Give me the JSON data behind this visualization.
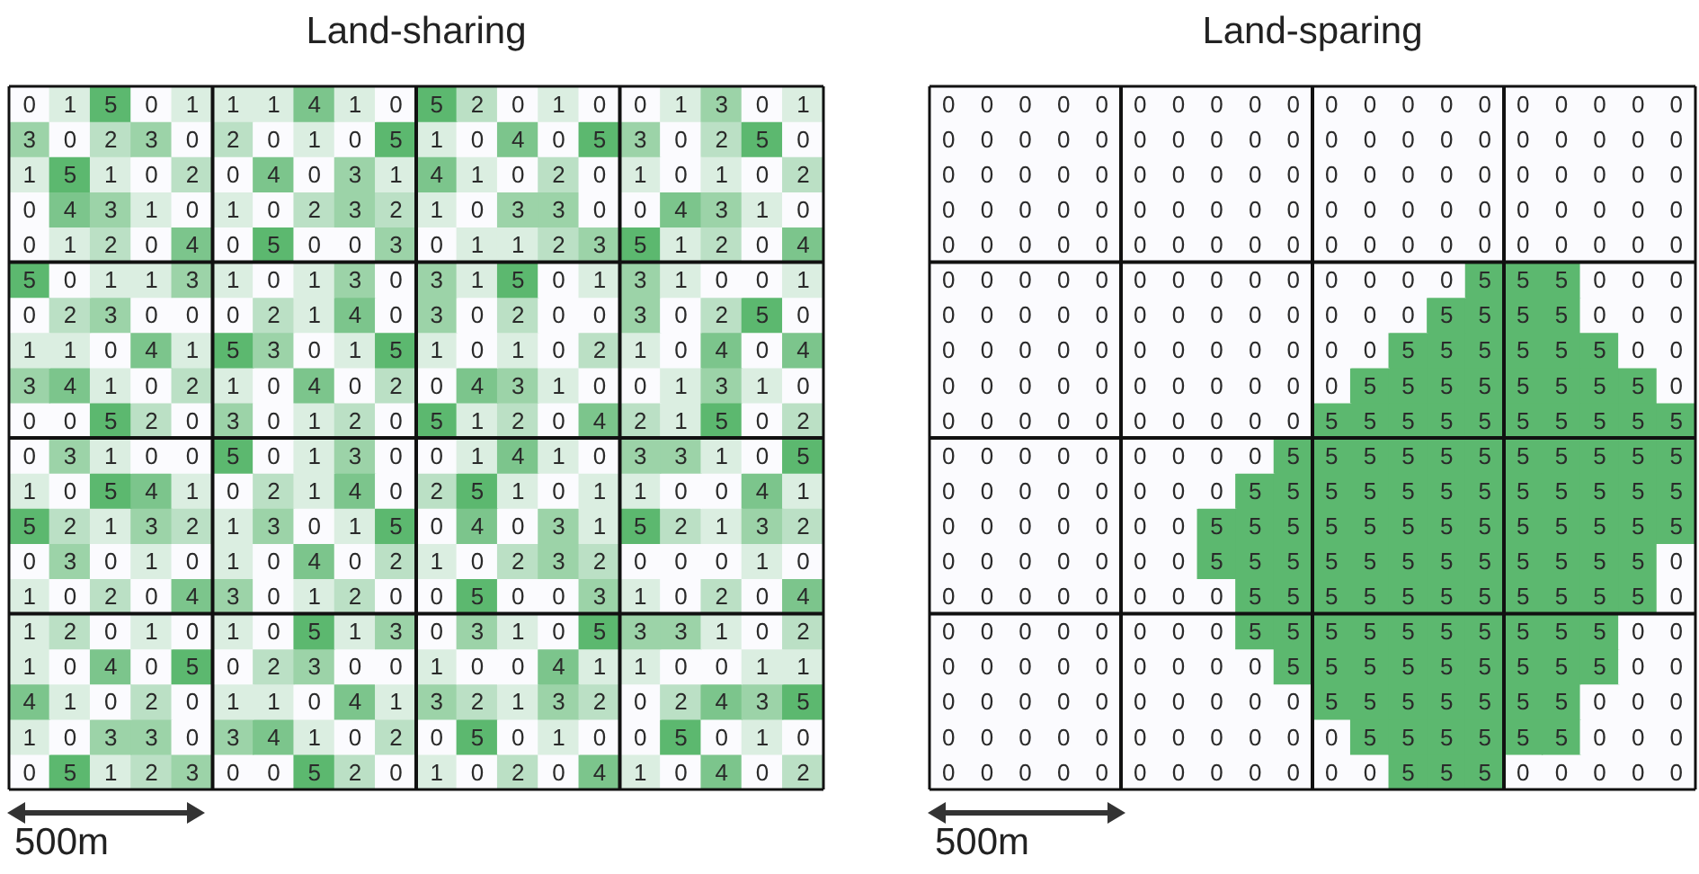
{
  "chart_data": [
    {
      "type": "heatmap",
      "title": "Land-sharing",
      "color": "#5cb86f",
      "data_labels": true,
      "annotations": [
        "500m"
      ],
      "categories": [
        null,
        null,
        null,
        null,
        null,
        null,
        null,
        null,
        null,
        null,
        null,
        null,
        null,
        null,
        null,
        null,
        null,
        null,
        null,
        null
      ],
      "y_categories": [
        null,
        null,
        null,
        null,
        null,
        null,
        null,
        null,
        null,
        null,
        null,
        null,
        null,
        null,
        null,
        null,
        null,
        null,
        null,
        null
      ],
      "cells": [
        [
          0,
          1,
          5,
          0,
          1,
          1,
          1,
          4,
          1,
          0,
          5,
          2,
          0,
          1,
          0,
          0,
          1,
          3,
          0,
          1
        ],
        [
          3,
          0,
          2,
          3,
          0,
          2,
          0,
          1,
          0,
          5,
          1,
          0,
          4,
          0,
          5,
          3,
          0,
          2,
          5,
          0
        ],
        [
          1,
          5,
          1,
          0,
          2,
          0,
          4,
          0,
          3,
          1,
          4,
          1,
          0,
          2,
          0,
          1,
          0,
          1,
          0,
          2
        ],
        [
          0,
          4,
          3,
          1,
          0,
          1,
          0,
          2,
          3,
          2,
          1,
          0,
          3,
          3,
          0,
          0,
          4,
          3,
          1,
          0
        ],
        [
          0,
          1,
          2,
          0,
          4,
          0,
          5,
          0,
          0,
          3,
          0,
          1,
          1,
          2,
          3,
          5,
          1,
          2,
          0,
          4
        ],
        [
          5,
          0,
          1,
          1,
          3,
          1,
          0,
          1,
          3,
          0,
          3,
          1,
          5,
          0,
          1,
          3,
          1,
          0,
          0,
          1
        ],
        [
          0,
          2,
          3,
          0,
          0,
          0,
          2,
          1,
          4,
          0,
          3,
          0,
          2,
          0,
          0,
          3,
          0,
          2,
          5,
          0
        ],
        [
          1,
          1,
          0,
          4,
          1,
          5,
          3,
          0,
          1,
          5,
          1,
          0,
          1,
          0,
          2,
          1,
          0,
          4,
          0,
          4
        ],
        [
          3,
          4,
          1,
          0,
          2,
          1,
          0,
          4,
          0,
          2,
          0,
          4,
          3,
          1,
          0,
          0,
          1,
          3,
          1,
          0
        ],
        [
          0,
          0,
          5,
          2,
          0,
          3,
          0,
          1,
          2,
          0,
          5,
          1,
          2,
          0,
          4,
          2,
          1,
          5,
          0,
          2
        ],
        [
          0,
          3,
          1,
          0,
          0,
          5,
          0,
          1,
          3,
          0,
          0,
          1,
          4,
          1,
          0,
          3,
          3,
          1,
          0,
          5
        ],
        [
          1,
          0,
          5,
          4,
          1,
          0,
          2,
          1,
          4,
          0,
          2,
          5,
          1,
          0,
          1,
          1,
          0,
          0,
          4,
          1
        ],
        [
          5,
          2,
          1,
          3,
          2,
          1,
          3,
          0,
          1,
          5,
          0,
          4,
          0,
          3,
          1,
          5,
          2,
          1,
          3,
          2
        ],
        [
          0,
          3,
          0,
          1,
          0,
          1,
          0,
          4,
          0,
          2,
          1,
          0,
          2,
          3,
          2,
          0,
          0,
          0,
          1,
          0
        ],
        [
          1,
          0,
          2,
          0,
          4,
          3,
          0,
          1,
          2,
          0,
          0,
          5,
          0,
          0,
          3,
          1,
          0,
          2,
          0,
          4
        ],
        [
          1,
          2,
          0,
          1,
          0,
          1,
          0,
          5,
          1,
          3,
          0,
          3,
          1,
          0,
          5,
          3,
          3,
          1,
          0,
          2
        ],
        [
          1,
          0,
          4,
          0,
          5,
          0,
          2,
          3,
          0,
          0,
          1,
          0,
          0,
          4,
          1,
          1,
          0,
          0,
          1,
          1
        ],
        [
          4,
          1,
          0,
          2,
          0,
          1,
          1,
          0,
          4,
          1,
          3,
          2,
          1,
          3,
          2,
          0,
          2,
          4,
          3,
          5
        ],
        [
          1,
          0,
          3,
          3,
          0,
          3,
          4,
          1,
          0,
          2,
          0,
          5,
          0,
          1,
          0,
          0,
          5,
          0,
          1,
          0
        ],
        [
          0,
          5,
          1,
          2,
          3,
          0,
          0,
          5,
          2,
          0,
          1,
          0,
          2,
          0,
          4,
          1,
          0,
          4,
          0,
          2
        ]
      ]
    },
    {
      "type": "heatmap",
      "title": "Land-sparing",
      "color": "#5cb86f",
      "data_labels": true,
      "annotations": [
        "500m"
      ],
      "categories": [
        null,
        null,
        null,
        null,
        null,
        null,
        null,
        null,
        null,
        null,
        null,
        null,
        null,
        null,
        null,
        null,
        null,
        null,
        null,
        null
      ],
      "y_categories": [
        null,
        null,
        null,
        null,
        null,
        null,
        null,
        null,
        null,
        null,
        null,
        null,
        null,
        null,
        null,
        null,
        null,
        null,
        null,
        null
      ],
      "cells": [
        [
          0,
          0,
          0,
          0,
          0,
          0,
          0,
          0,
          0,
          0,
          0,
          0,
          0,
          0,
          0,
          0,
          0,
          0,
          0,
          0
        ],
        [
          0,
          0,
          0,
          0,
          0,
          0,
          0,
          0,
          0,
          0,
          0,
          0,
          0,
          0,
          0,
          0,
          0,
          0,
          0,
          0
        ],
        [
          0,
          0,
          0,
          0,
          0,
          0,
          0,
          0,
          0,
          0,
          0,
          0,
          0,
          0,
          0,
          0,
          0,
          0,
          0,
          0
        ],
        [
          0,
          0,
          0,
          0,
          0,
          0,
          0,
          0,
          0,
          0,
          0,
          0,
          0,
          0,
          0,
          0,
          0,
          0,
          0,
          0
        ],
        [
          0,
          0,
          0,
          0,
          0,
          0,
          0,
          0,
          0,
          0,
          0,
          0,
          0,
          0,
          0,
          0,
          0,
          0,
          0,
          0
        ],
        [
          0,
          0,
          0,
          0,
          0,
          0,
          0,
          0,
          0,
          0,
          0,
          0,
          0,
          0,
          5,
          5,
          5,
          0,
          0,
          0
        ],
        [
          0,
          0,
          0,
          0,
          0,
          0,
          0,
          0,
          0,
          0,
          0,
          0,
          0,
          5,
          5,
          5,
          5,
          0,
          0,
          0
        ],
        [
          0,
          0,
          0,
          0,
          0,
          0,
          0,
          0,
          0,
          0,
          0,
          0,
          5,
          5,
          5,
          5,
          5,
          5,
          0,
          0
        ],
        [
          0,
          0,
          0,
          0,
          0,
          0,
          0,
          0,
          0,
          0,
          0,
          5,
          5,
          5,
          5,
          5,
          5,
          5,
          5,
          0
        ],
        [
          0,
          0,
          0,
          0,
          0,
          0,
          0,
          0,
          0,
          0,
          5,
          5,
          5,
          5,
          5,
          5,
          5,
          5,
          5,
          5
        ],
        [
          0,
          0,
          0,
          0,
          0,
          0,
          0,
          0,
          0,
          5,
          5,
          5,
          5,
          5,
          5,
          5,
          5,
          5,
          5,
          5
        ],
        [
          0,
          0,
          0,
          0,
          0,
          0,
          0,
          0,
          5,
          5,
          5,
          5,
          5,
          5,
          5,
          5,
          5,
          5,
          5,
          5
        ],
        [
          0,
          0,
          0,
          0,
          0,
          0,
          0,
          5,
          5,
          5,
          5,
          5,
          5,
          5,
          5,
          5,
          5,
          5,
          5,
          5
        ],
        [
          0,
          0,
          0,
          0,
          0,
          0,
          0,
          5,
          5,
          5,
          5,
          5,
          5,
          5,
          5,
          5,
          5,
          5,
          5,
          0
        ],
        [
          0,
          0,
          0,
          0,
          0,
          0,
          0,
          0,
          5,
          5,
          5,
          5,
          5,
          5,
          5,
          5,
          5,
          5,
          5,
          0
        ],
        [
          0,
          0,
          0,
          0,
          0,
          0,
          0,
          0,
          5,
          5,
          5,
          5,
          5,
          5,
          5,
          5,
          5,
          5,
          0,
          0
        ],
        [
          0,
          0,
          0,
          0,
          0,
          0,
          0,
          0,
          0,
          5,
          5,
          5,
          5,
          5,
          5,
          5,
          5,
          5,
          0,
          0
        ],
        [
          0,
          0,
          0,
          0,
          0,
          0,
          0,
          0,
          0,
          0,
          5,
          5,
          5,
          5,
          5,
          5,
          5,
          0,
          0,
          0
        ],
        [
          0,
          0,
          0,
          0,
          0,
          0,
          0,
          0,
          0,
          0,
          0,
          5,
          5,
          5,
          5,
          5,
          5,
          0,
          0,
          0
        ],
        [
          0,
          0,
          0,
          0,
          0,
          0,
          0,
          0,
          0,
          0,
          0,
          0,
          5,
          5,
          5,
          0,
          0,
          0,
          0,
          0
        ]
      ]
    }
  ]
}
